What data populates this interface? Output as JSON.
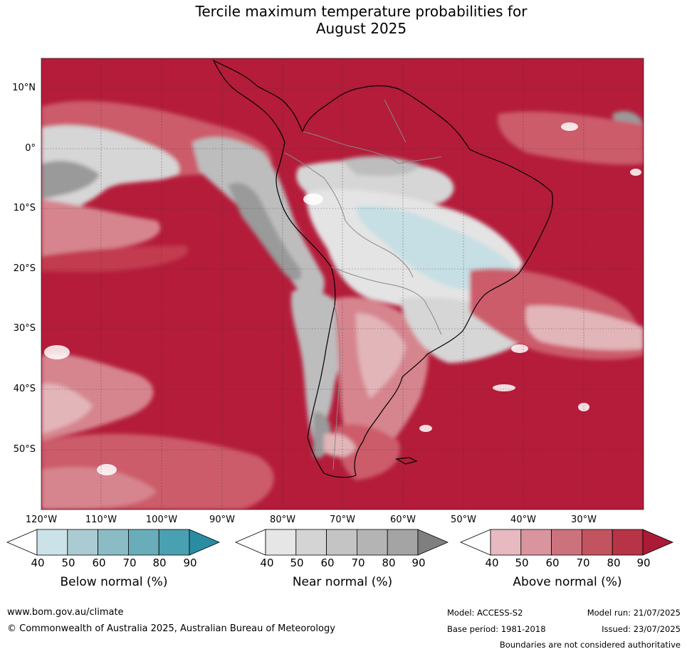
{
  "title": {
    "line1": "Tercile maximum temperature probabilities for",
    "line2": "August 2025"
  },
  "map": {
    "lat_labels": [
      "10°N",
      "0°",
      "10°S",
      "20°S",
      "30°S",
      "40°S",
      "50°S"
    ],
    "lon_labels": [
      "120°W",
      "110°W",
      "100°W",
      "90°W",
      "80°W",
      "70°W",
      "60°W",
      "50°W",
      "40°W",
      "30°W"
    ],
    "colors": {
      "above_90": "#b41c3a",
      "above_80": "#c23a50",
      "above_70": "#cc5c6a",
      "above_60": "#d6858e",
      "above_50": "#e2b5b9",
      "near_80": "#9a9a9a",
      "near_60": "#bdbdbd",
      "near_50": "#d6d6d6",
      "below_50": "#c6dfe4",
      "white": "#ffffff"
    }
  },
  "colorbars": [
    {
      "title": "Below normal (%)",
      "ticks": [
        "40",
        "50",
        "60",
        "70",
        "80",
        "90"
      ],
      "colors": [
        "#ffffff",
        "#cbe3e8",
        "#a9cbd1",
        "#8bbcc5",
        "#6aadba",
        "#49a0b1",
        "#2a8ca3"
      ]
    },
    {
      "title": "Near normal (%)",
      "ticks": [
        "40",
        "50",
        "60",
        "70",
        "80",
        "90"
      ],
      "colors": [
        "#ffffff",
        "#e6e6e6",
        "#d4d4d4",
        "#c4c4c4",
        "#b4b4b4",
        "#a4a4a4",
        "#7f7f7f"
      ]
    },
    {
      "title": "Above normal (%)",
      "ticks": [
        "40",
        "50",
        "60",
        "70",
        "80",
        "90"
      ],
      "colors": [
        "#ffffff",
        "#e6bac0",
        "#d8959d",
        "#cc727d",
        "#c2545f",
        "#b73346",
        "#ab1a36"
      ]
    }
  ],
  "footer": {
    "url": "www.bom.gov.au/climate",
    "copyright": "© Commonwealth of Australia 2025, Australian Bureau of Meteorology",
    "model": "Model: ACCESS-S2",
    "base_period": "Base period: 1981-2018",
    "model_run": "Model run: 21/07/2025",
    "issued": "Issued: 23/07/2025",
    "disclaimer": "Boundaries are not considered authoritative"
  }
}
